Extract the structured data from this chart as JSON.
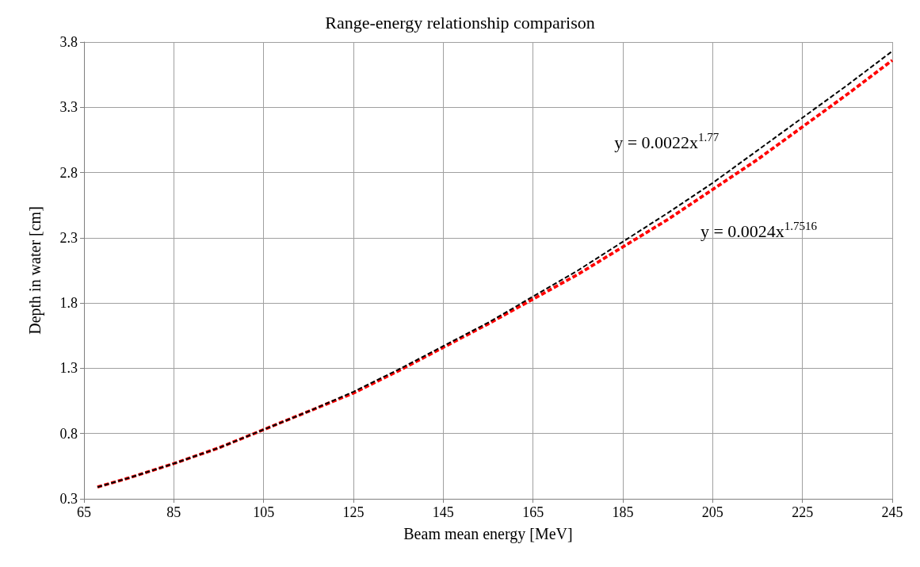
{
  "chart_data": {
    "type": "line",
    "title": "Range-energy relationship comparison",
    "xlabel": "Beam mean energy [MeV]",
    "ylabel": "Depth in water [cm]",
    "series": [
      {
        "color": "#000000",
        "x": [
          68,
          75,
          85,
          95,
          105,
          115,
          125,
          135,
          145,
          155,
          165,
          175,
          185,
          195,
          205,
          215,
          225,
          235,
          245
        ],
        "values": [
          0.39,
          0.46,
          0.57,
          0.69,
          0.83,
          0.97,
          1.12,
          1.29,
          1.47,
          1.65,
          1.85,
          2.05,
          2.27,
          2.49,
          2.72,
          2.97,
          3.22,
          3.47,
          3.73
        ]
      },
      {
        "color": "#ff0000",
        "x": [
          68,
          75,
          85,
          95,
          105,
          115,
          125,
          135,
          145,
          155,
          165,
          175,
          185,
          195,
          205,
          215,
          225,
          235,
          245
        ],
        "values": [
          0.39,
          0.46,
          0.57,
          0.69,
          0.83,
          0.97,
          1.11,
          1.28,
          1.46,
          1.64,
          1.83,
          2.02,
          2.23,
          2.44,
          2.67,
          2.9,
          3.15,
          3.4,
          3.66
        ]
      }
    ],
    "annotations": [
      "y = 0.0022x$^{1.77}$",
      "y = 0.0024x$^{1.7516}$"
    ],
    "xlim": [
      65,
      245
    ],
    "xticks": [
      65,
      85,
      105,
      125,
      145,
      165,
      185,
      205,
      225,
      245
    ],
    "ylim": [
      0.3,
      3.8
    ],
    "yticks": [
      0.3,
      0.8,
      1.3,
      1.8,
      2.3,
      2.8,
      3.3,
      3.8
    ],
    "grid": true,
    "marker": "none",
    "line_style": "dashed"
  }
}
